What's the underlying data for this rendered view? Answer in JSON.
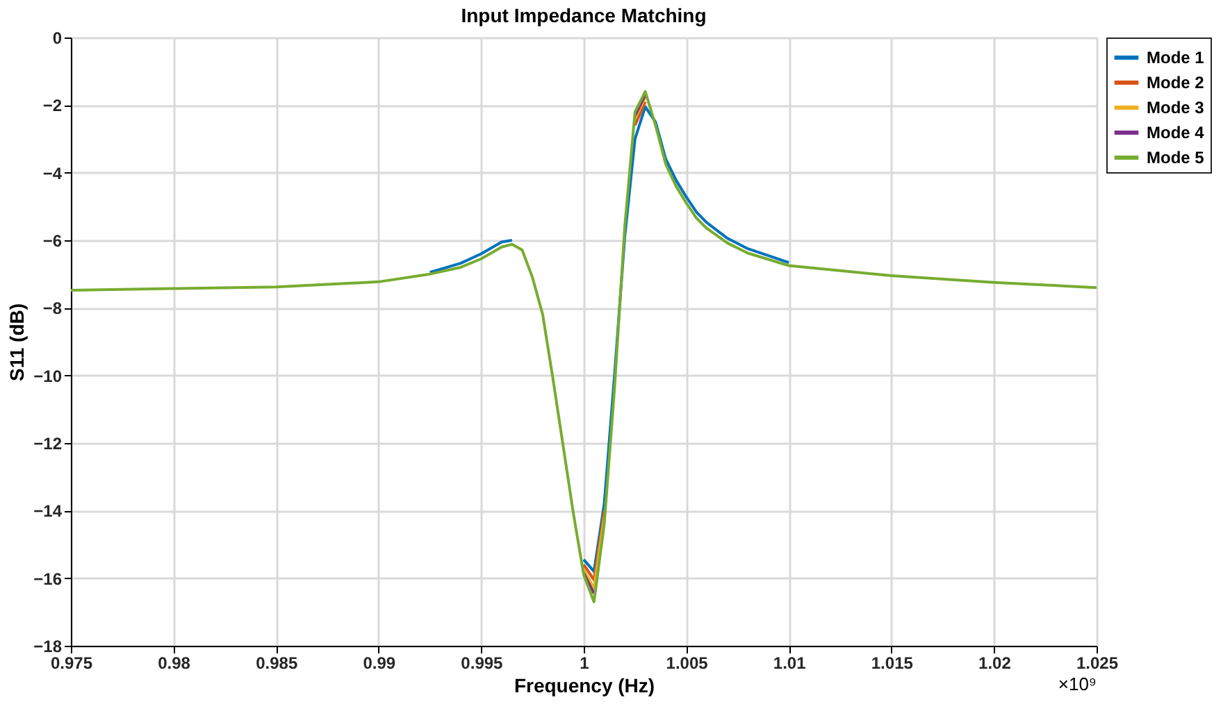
{
  "chart_data": {
    "type": "line",
    "title": "Input Impedance Matching",
    "xlabel": "Frequency (Hz)",
    "ylabel": "S11 (dB)",
    "x": [
      0.975,
      0.98,
      0.985,
      0.99,
      0.9925,
      0.994,
      0.995,
      0.996,
      0.9965,
      0.997,
      0.9975,
      0.998,
      0.9985,
      0.999,
      0.9995,
      1.0,
      1.0005,
      1.001,
      1.0015,
      1.002,
      1.0025,
      1.003,
      1.0035,
      1.004,
      1.0045,
      1.005,
      1.0055,
      1.006,
      1.007,
      1.008,
      1.01,
      1.015,
      1.02,
      1.025
    ],
    "series": [
      {
        "name": "Mode 1",
        "color": "#0072bd",
        "values": [
          null,
          null,
          null,
          null,
          -6.95,
          -6.68,
          -6.4,
          -6.05,
          -6.0,
          null,
          null,
          null,
          null,
          null,
          null,
          -15.45,
          -15.8,
          -13.8,
          -10.0,
          -5.9,
          -3.0,
          -2.05,
          -2.5,
          -3.6,
          -4.22,
          -4.72,
          -5.17,
          -5.48,
          -5.94,
          -6.25,
          -6.66,
          null,
          null,
          null
        ]
      },
      {
        "name": "Mode 2",
        "color": "#d95319",
        "values": [
          null,
          null,
          null,
          null,
          null,
          null,
          null,
          null,
          null,
          null,
          null,
          null,
          null,
          null,
          null,
          -15.6,
          -16.05,
          -14.0,
          null,
          null,
          -2.6,
          -1.9,
          null,
          null,
          null,
          null,
          null,
          null,
          null,
          null,
          null,
          null,
          null,
          null
        ]
      },
      {
        "name": "Mode 3",
        "color": "#edb120",
        "values": [
          null,
          null,
          null,
          null,
          null,
          null,
          null,
          null,
          null,
          null,
          null,
          null,
          null,
          null,
          null,
          -15.75,
          -16.3,
          -14.2,
          null,
          null,
          -2.4,
          -1.77,
          null,
          null,
          null,
          null,
          null,
          null,
          null,
          null,
          null,
          null,
          null,
          null
        ]
      },
      {
        "name": "Mode 4",
        "color": "#7e2f8e",
        "values": [
          null,
          null,
          null,
          null,
          null,
          null,
          null,
          null,
          null,
          null,
          null,
          null,
          null,
          null,
          null,
          -15.85,
          -16.45,
          null,
          null,
          null,
          -2.32,
          -1.7,
          null,
          null,
          null,
          null,
          null,
          null,
          null,
          null,
          null,
          null,
          null,
          null
        ]
      },
      {
        "name": "Mode 5",
        "color": "#77ac30",
        "values": [
          -7.48,
          -7.43,
          -7.38,
          -7.23,
          -7.0,
          -6.8,
          -6.55,
          -6.2,
          -6.12,
          -6.29,
          -7.1,
          -8.2,
          -10.1,
          -12.1,
          -14.1,
          -15.9,
          -16.7,
          -14.4,
          -10.4,
          -5.6,
          -2.2,
          -1.6,
          -2.6,
          -3.75,
          -4.4,
          -4.9,
          -5.35,
          -5.65,
          -6.08,
          -6.38,
          -6.75,
          -7.05,
          -7.25,
          -7.4
        ]
      }
    ],
    "xlim": [
      0.975,
      1.025
    ],
    "xticks": [
      0.975,
      0.98,
      0.985,
      0.99,
      0.995,
      1,
      1.005,
      1.01,
      1.015,
      1.02,
      1.025
    ],
    "ylim": [
      -18,
      0
    ],
    "yticks": [
      -18,
      -16,
      -14,
      -12,
      -10,
      -8,
      -6,
      -4,
      -2,
      0
    ],
    "annotations": [
      "×10⁹"
    ],
    "grid": true,
    "legend": "top right",
    "line_style": "solid",
    "marker": "none"
  }
}
